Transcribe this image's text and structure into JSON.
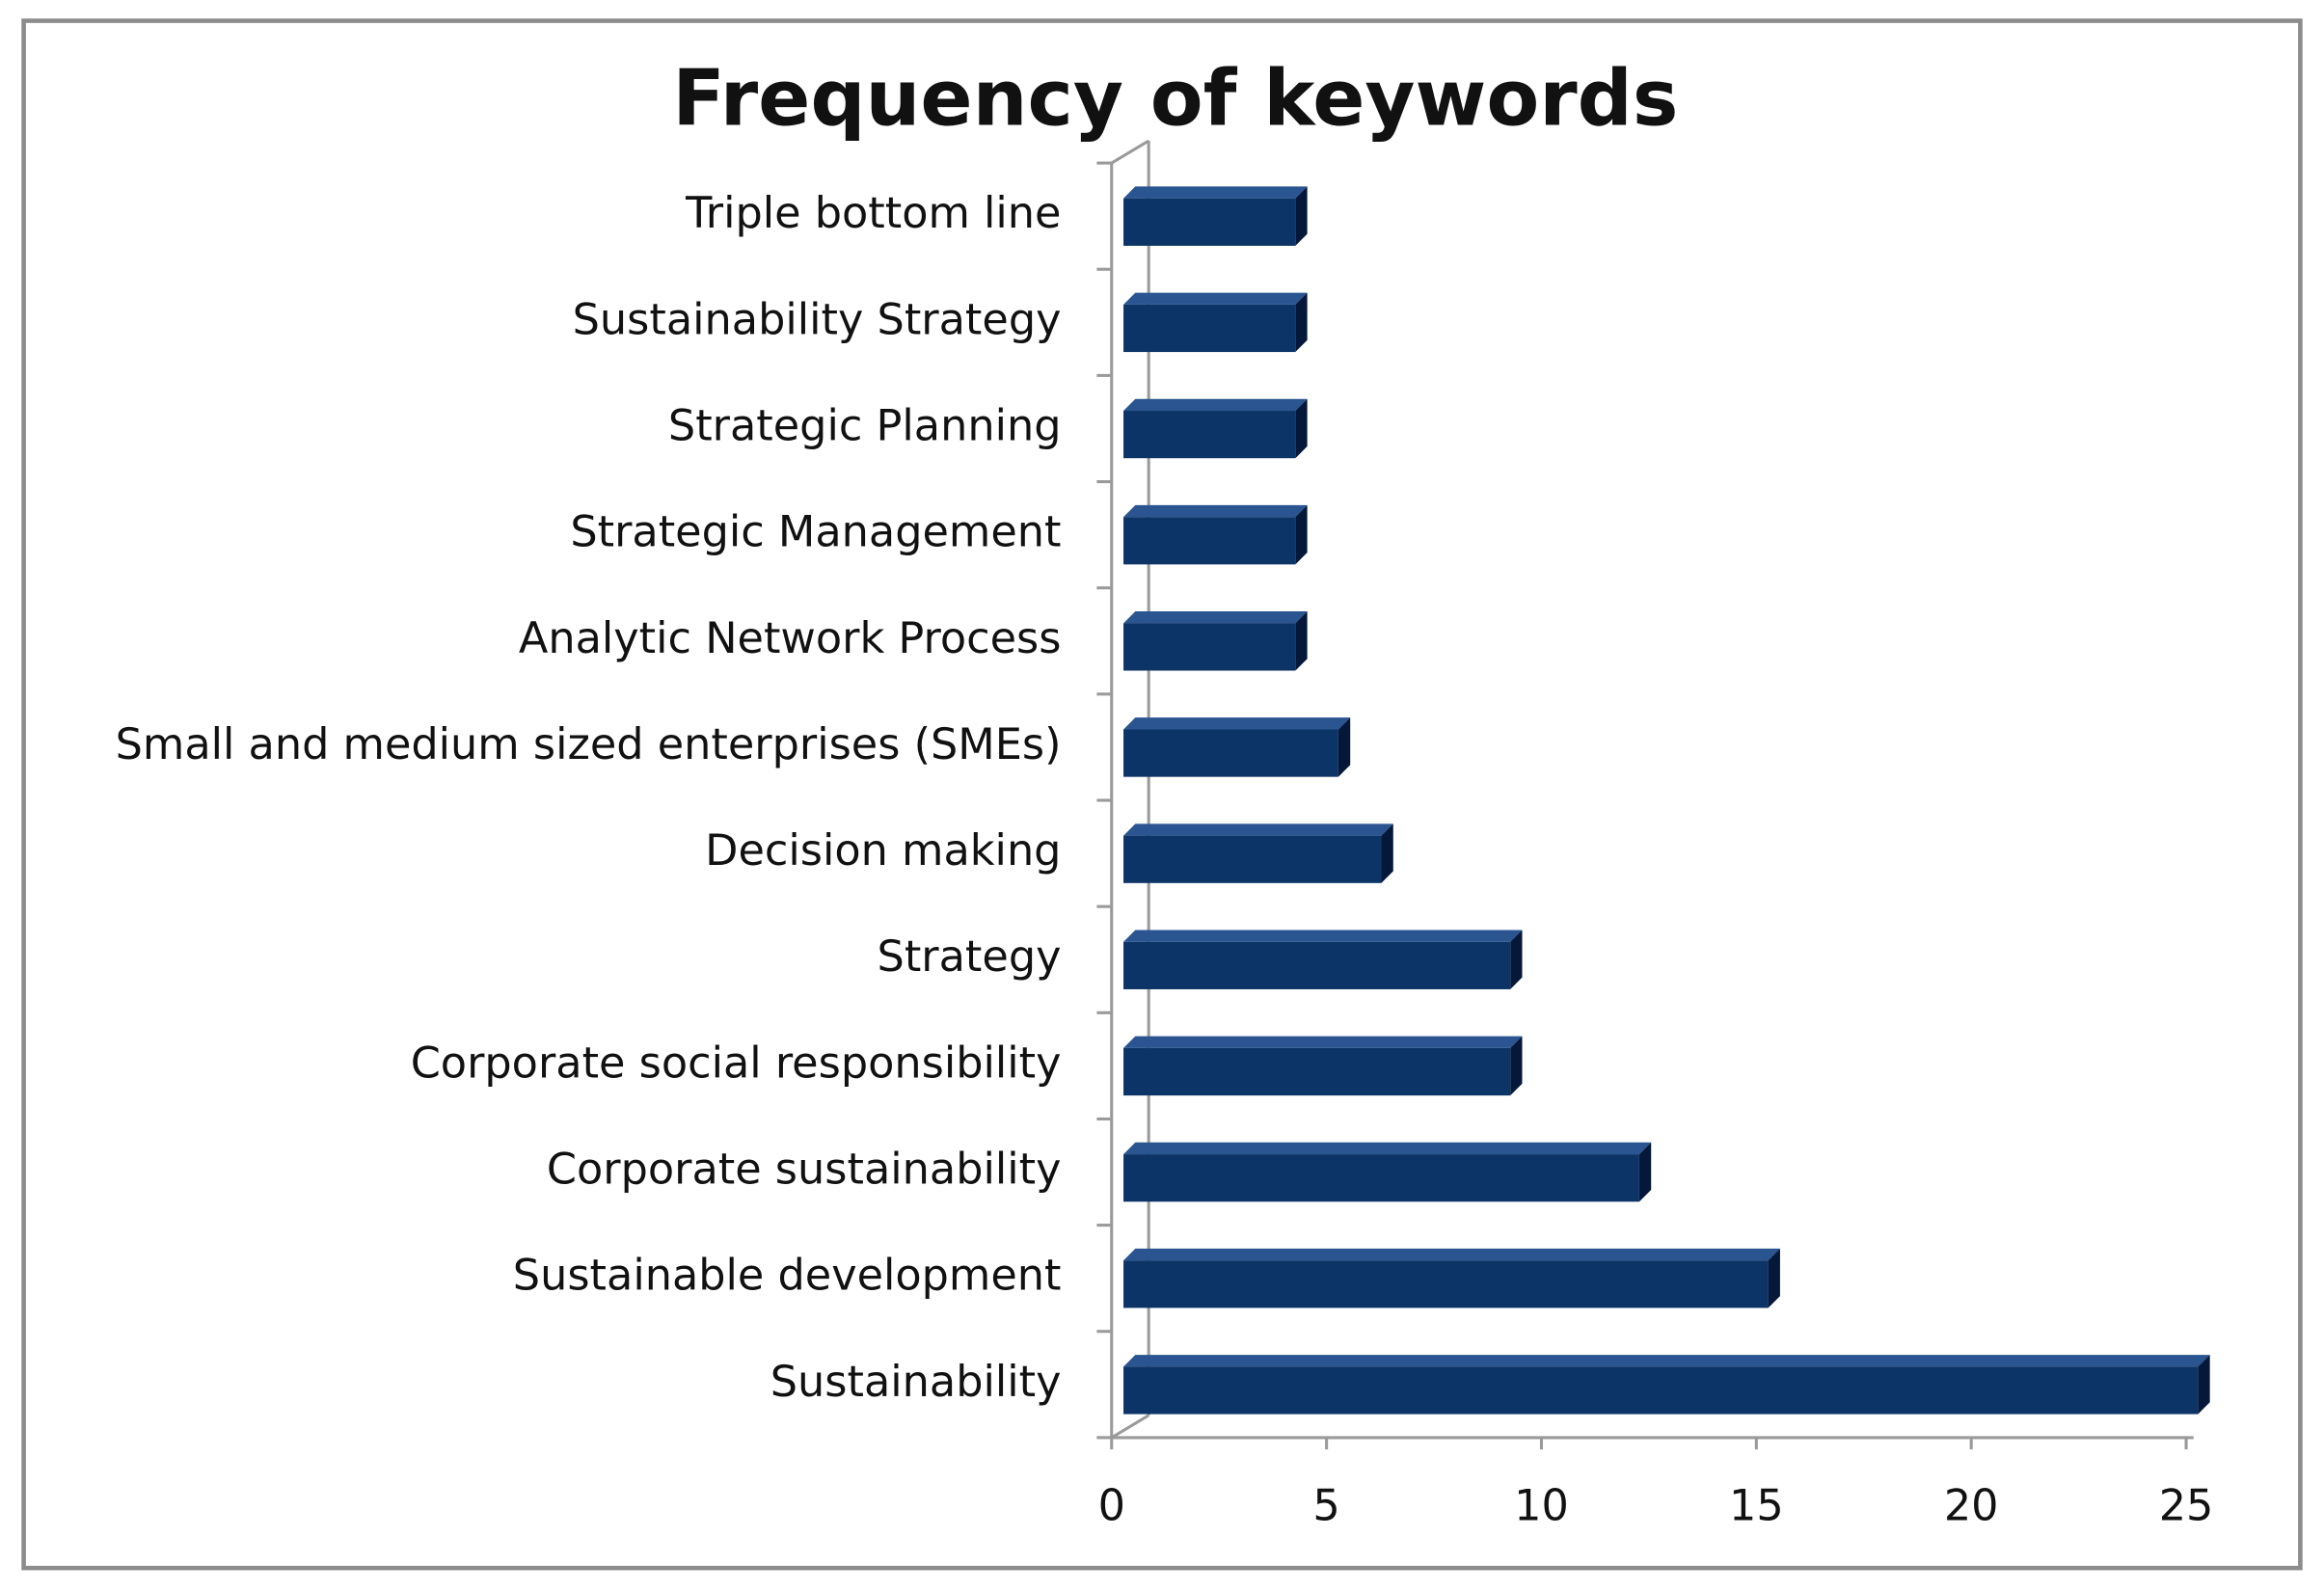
{
  "chart_data": {
    "type": "bar",
    "orientation": "horizontal",
    "title": "Frequency of keywords",
    "categories": [
      "Triple bottom line",
      "Sustainability Strategy",
      "Strategic Planning",
      "Strategic Management",
      "Analytic Network Process",
      "Small and medium sized enterprises (SMEs)",
      "Decision making",
      "Strategy",
      "Corporate social responsibility",
      "Corporate sustainability",
      "Sustainable development",
      "Sustainability"
    ],
    "values": [
      4,
      4,
      4,
      4,
      4,
      5,
      6,
      9,
      9,
      12,
      15,
      25
    ],
    "color": "#0d3466",
    "xlim": [
      0,
      25
    ],
    "xticks": [
      0,
      5,
      10,
      15,
      20,
      25
    ]
  }
}
